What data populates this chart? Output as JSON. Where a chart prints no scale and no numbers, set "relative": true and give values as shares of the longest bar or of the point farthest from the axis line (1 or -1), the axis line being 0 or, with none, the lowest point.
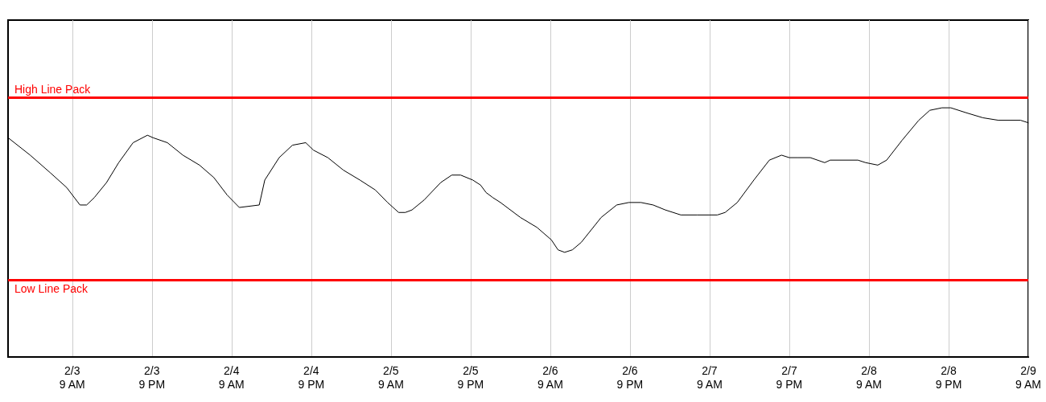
{
  "chart_data": {
    "type": "line",
    "relative": true,
    "grid": "x",
    "marker": "none",
    "tick_labels": "x",
    "xlim": [
      "--02-02T23:20",
      "--02-09T09:00"
    ],
    "xticks": [
      {
        "value": "--02-03T09:00",
        "label": "2/3\n9 AM"
      },
      {
        "value": "--02-03T21:00",
        "label": "2/3\n9 PM"
      },
      {
        "value": "--02-04T09:00",
        "label": "2/4\n9 AM"
      },
      {
        "value": "--02-04T21:00",
        "label": "2/4\n9 PM"
      },
      {
        "value": "--02-05T09:00",
        "label": "2/5\n9 AM"
      },
      {
        "value": "--02-05T21:00",
        "label": "2/5\n9 PM"
      },
      {
        "value": "--02-06T09:00",
        "label": "2/6\n9 AM"
      },
      {
        "value": "--02-06T21:00",
        "label": "2/6\n9 PM"
      },
      {
        "value": "--02-07T09:00",
        "label": "2/7\n9 AM"
      },
      {
        "value": "--02-07T21:00",
        "label": "2/7\n9 PM"
      },
      {
        "value": "--02-08T09:00",
        "label": "2/8\n9 AM"
      },
      {
        "value": "--02-08T21:00",
        "label": "2/8\n9 PM"
      },
      {
        "value": "--02-09T09:00",
        "label": "2/9\n9 AM"
      }
    ],
    "x": [
      "--02-02T23:20",
      "--02-03T02:40",
      "--02-03T05:40",
      "--02-03T08:10",
      "--02-03T10:10",
      "--02-03T11:10",
      "--02-03T12:20",
      "--02-03T14:10",
      "--02-03T16:00",
      "--02-03T18:10",
      "--02-03T20:20",
      "--02-03T21:10",
      "--02-03T23:20",
      "--02-04T01:40",
      "--02-04T04:10",
      "--02-04T06:20",
      "--02-04T08:20",
      "--02-04T10:10",
      "--02-04T13:10",
      "--02-04T14:00",
      "--02-04T16:10",
      "--02-04T18:10",
      "--02-04T20:10",
      "--02-04T21:20",
      "--02-04T23:30",
      "--02-05T01:50",
      "--02-05T04:20",
      "--02-05T06:40",
      "--02-05T08:30",
      "--02-05T10:10",
      "--02-05T11:10",
      "--02-05T12:10",
      "--02-05T14:00",
      "--02-05T16:30",
      "--02-05T18:10",
      "--02-05T19:30",
      "--02-05T21:20",
      "--02-05T22:30",
      "--02-05T23:20",
      "--02-06T00:20",
      "--02-06T01:30",
      "--02-06T04:30",
      "--02-06T07:00",
      "--02-06T09:10",
      "--02-06T10:10",
      "--02-06T11:10",
      "--02-06T12:20",
      "--02-06T13:40",
      "--02-06T16:40",
      "--02-06T19:00",
      "--02-06T20:50",
      "--02-06T22:40",
      "--02-07T00:30",
      "--02-07T02:20",
      "--02-07T04:40",
      "--02-07T07:10",
      "--02-07T09:00",
      "--02-07T10:10",
      "--02-07T11:20",
      "--02-07T13:10",
      "--02-07T15:40",
      "--02-07T18:00",
      "--02-07T19:50",
      "--02-07T21:00",
      "--02-07T22:20",
      "--02-08T00:10",
      "--02-08T02:20",
      "--02-08T03:10",
      "--02-08T07:20",
      "--02-08T08:30",
      "--02-08T10:20",
      "--02-08T11:40",
      "--02-08T14:00",
      "--02-08T16:30",
      "--02-08T18:10",
      "--02-08T20:00",
      "--02-08T21:20",
      "--02-08T23:40",
      "--02-09T02:10",
      "--02-09T04:30",
      "--02-09T06:20",
      "--02-09T07:50",
      "--02-09T09:00"
    ],
    "series": [
      {
        "color": "#000000",
        "values": [
          0.88,
          0.81,
          0.74,
          0.68,
          0.61,
          0.61,
          0.64,
          0.7,
          0.78,
          0.86,
          0.89,
          0.88,
          0.86,
          0.81,
          0.77,
          0.72,
          0.65,
          0.6,
          0.61,
          0.71,
          0.8,
          0.85,
          0.86,
          0.83,
          0.8,
          0.75,
          0.71,
          0.67,
          0.62,
          0.58,
          0.58,
          0.59,
          0.63,
          0.7,
          0.73,
          0.73,
          0.71,
          0.69,
          0.66,
          0.64,
          0.62,
          0.56,
          0.52,
          0.47,
          0.43,
          0.42,
          0.43,
          0.46,
          0.56,
          0.61,
          0.62,
          0.62,
          0.61,
          0.59,
          0.57,
          0.57,
          0.57,
          0.57,
          0.58,
          0.62,
          0.71,
          0.79,
          0.81,
          0.8,
          0.8,
          0.8,
          0.78,
          0.79,
          0.79,
          0.78,
          0.77,
          0.79,
          0.87,
          0.95,
          0.99,
          1.0,
          1.0,
          0.98,
          0.96,
          0.95,
          0.95,
          0.95,
          0.94
        ]
      }
    ],
    "ref_lines": [
      {
        "axis": "y",
        "value": 1.04,
        "label": "High Line Pack",
        "color": "#ff0000"
      },
      {
        "axis": "y",
        "value": 0.31,
        "label": "Low Line Pack",
        "color": "#ff0000"
      }
    ]
  }
}
